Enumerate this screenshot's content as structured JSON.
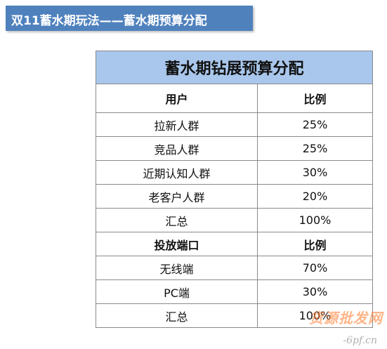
{
  "header": {
    "title": "双11蓄水期玩法——蓄水期预算分配"
  },
  "table": {
    "title": "蓄水期钻展预算分配",
    "section1": {
      "header": [
        "用户",
        "比例"
      ],
      "rows": [
        [
          "拉新人群",
          "25%"
        ],
        [
          "竞品人群",
          "25%"
        ],
        [
          "近期认知人群",
          "30%"
        ],
        [
          "老客户人群",
          "20%"
        ],
        [
          "汇总",
          "100%"
        ]
      ]
    },
    "section2": {
      "header": [
        "投放端口",
        "比例"
      ],
      "rows": [
        [
          "无线端",
          "70%"
        ],
        [
          "PC端",
          "30%"
        ],
        [
          "汇总",
          "100%"
        ]
      ]
    }
  },
  "watermark": {
    "main": "货源批发网",
    "sub": "-6pf.cn"
  },
  "colors": {
    "header_bar": "#4f81bd",
    "table_title_bg": "#a9c7ec",
    "border": "#8a8a8a"
  }
}
